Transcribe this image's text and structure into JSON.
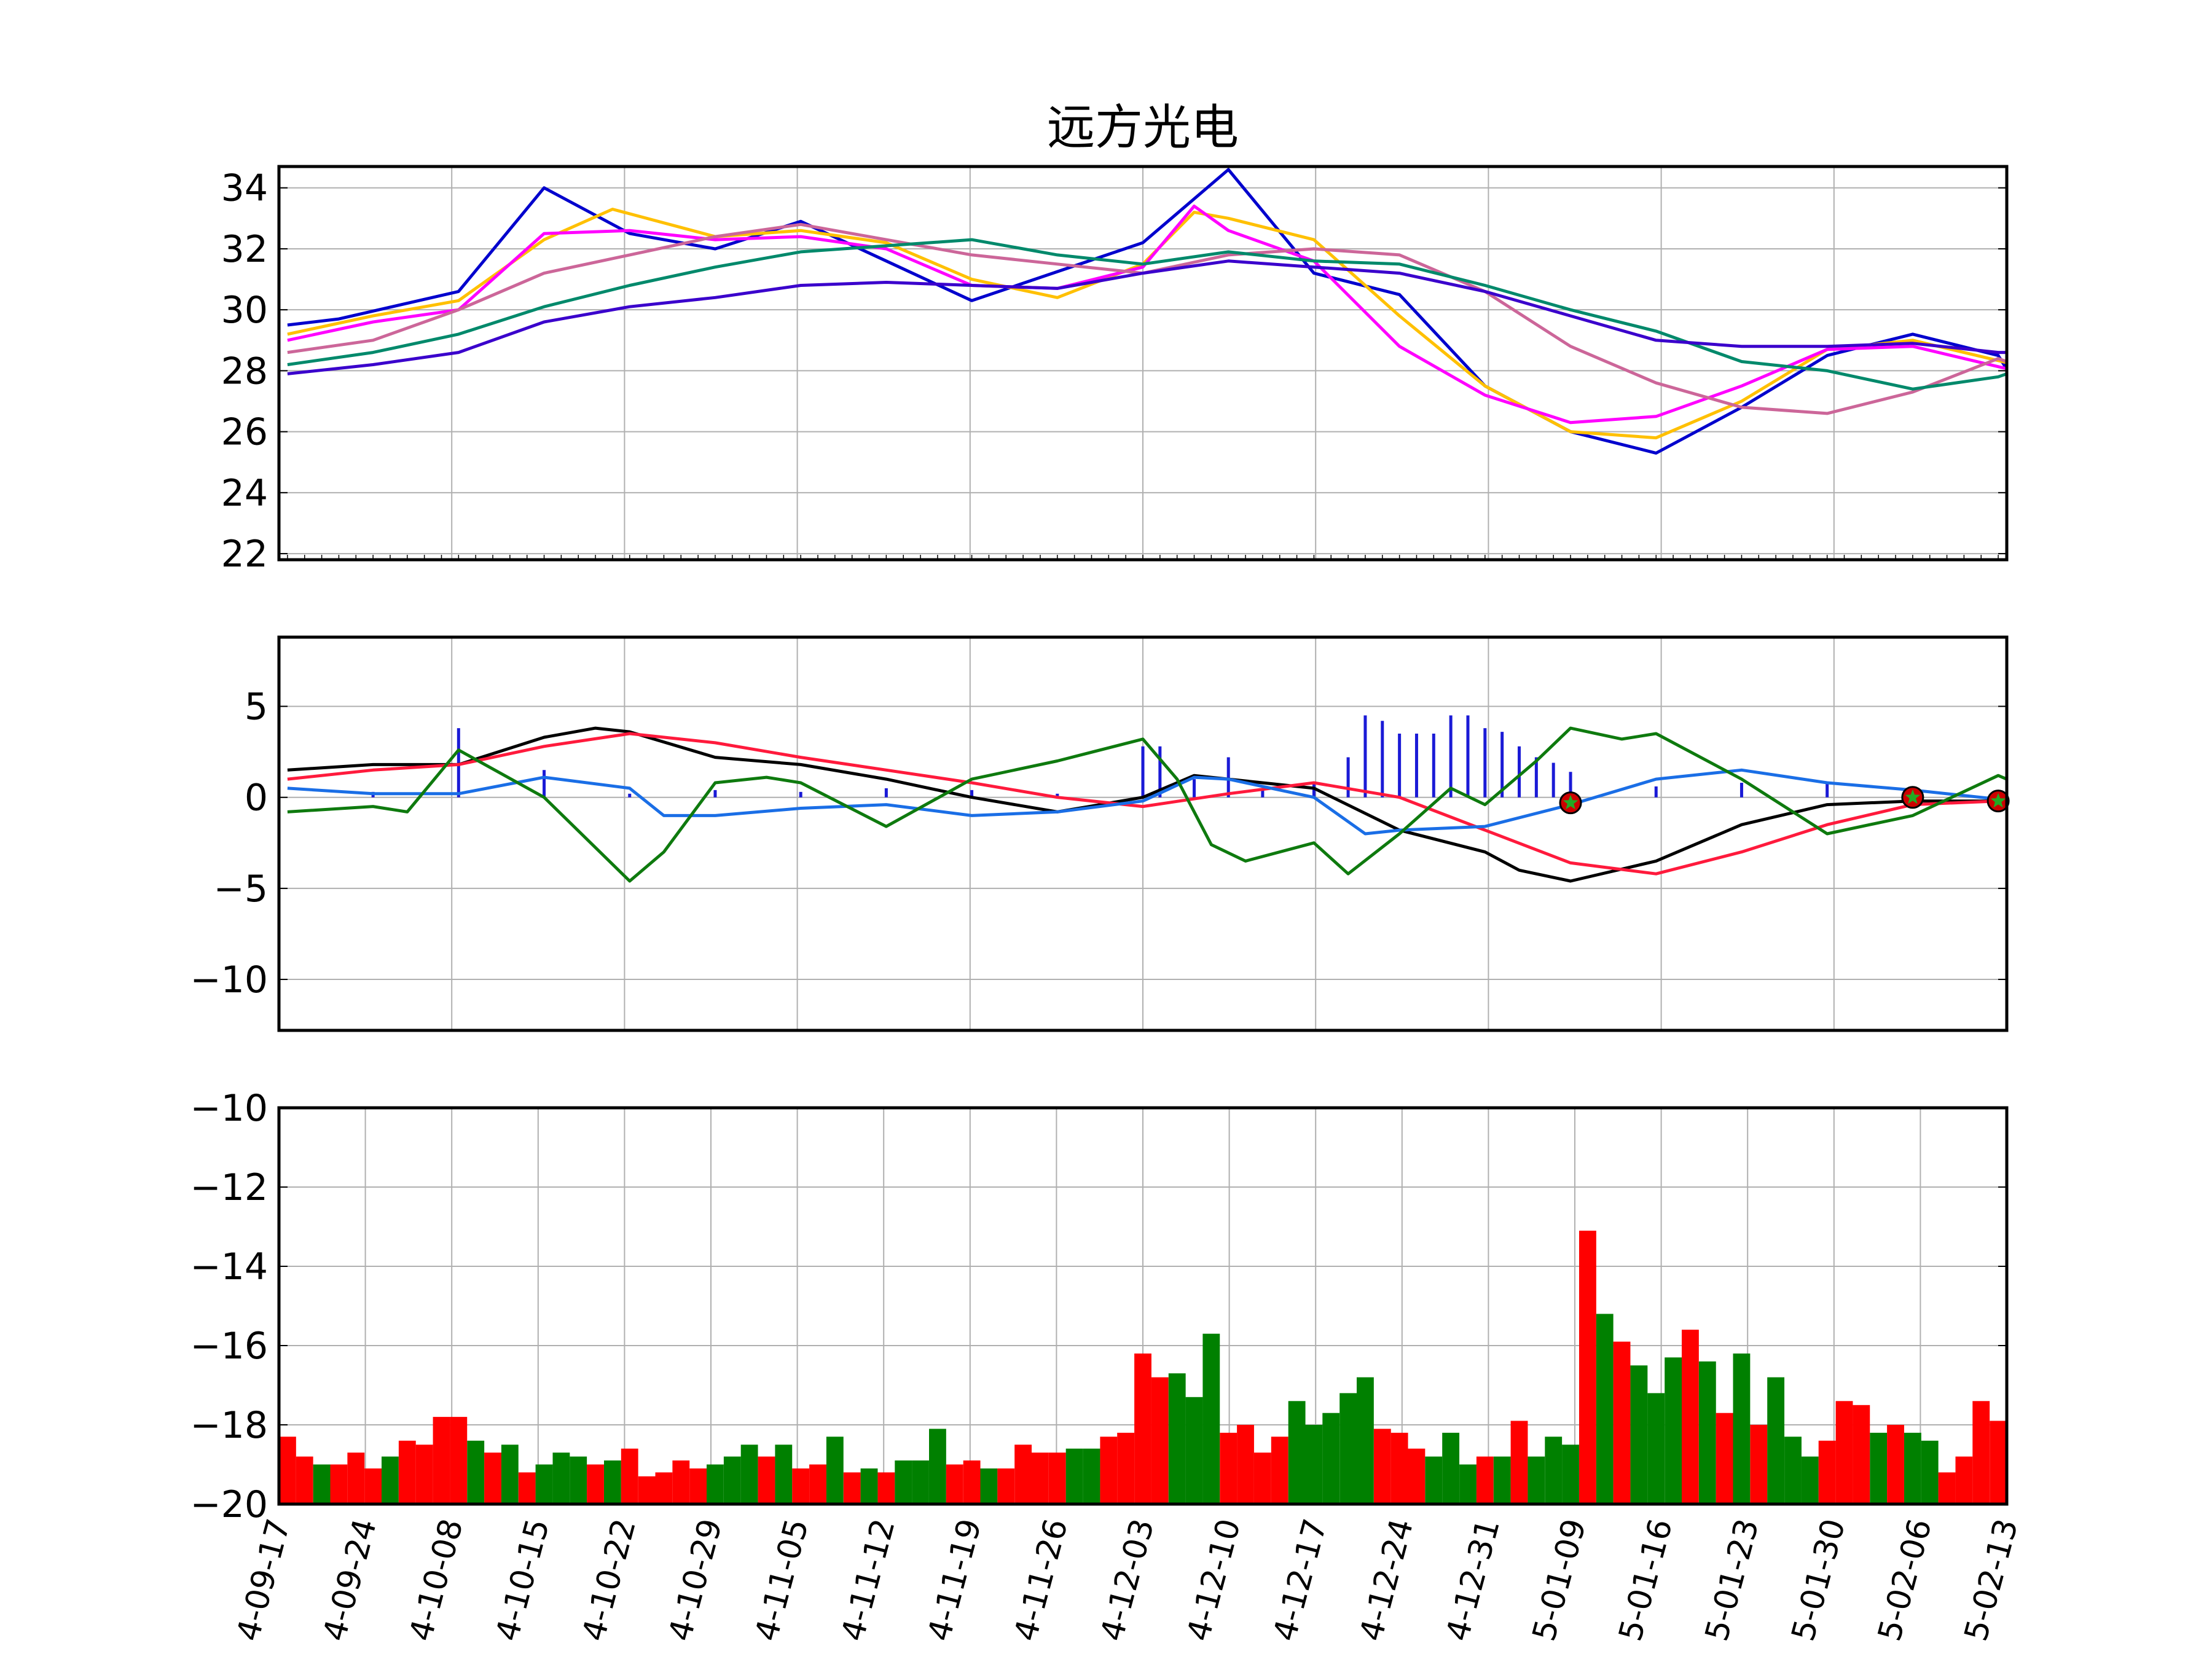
{
  "chart_data": [
    {
      "type": "line",
      "panel": "price",
      "title": "远方光电",
      "ylim": [
        21.8,
        34.7
      ],
      "yticks": [
        22,
        24,
        26,
        28,
        30,
        32,
        34
      ],
      "ytick_labels": [
        "22",
        "24",
        "26",
        "28",
        "30",
        "32",
        "34"
      ],
      "grid": true,
      "x_dates": [
        "4-09-17",
        "4-09-24",
        "4-10-08",
        "4-10-15",
        "4-10-22",
        "4-10-29",
        "4-11-05",
        "4-11-12",
        "4-11-19",
        "4-11-26",
        "4-12-03",
        "4-12-10",
        "4-12-17",
        "4-12-24",
        "4-12-31",
        "5-01-09",
        "5-01-16",
        "5-01-23",
        "5-01-30",
        "5-02-06",
        "5-02-13"
      ],
      "series": [
        {
          "color": "#0000cd",
          "x": [
            0,
            3,
            10,
            15,
            20,
            25,
            30,
            35,
            40,
            50,
            55,
            60,
            65,
            70,
            75,
            80,
            85,
            90,
            95,
            100,
            101
          ],
          "values": [
            29.5,
            29.7,
            30.6,
            34.0,
            32.5,
            32.0,
            32.9,
            31.6,
            30.3,
            32.2,
            34.6,
            31.2,
            30.5,
            27.5,
            26.0,
            25.3,
            26.8,
            28.5,
            29.2,
            28.5,
            27.6
          ]
        },
        {
          "color": "#ffc000",
          "x": [
            0,
            5,
            10,
            15,
            19,
            25,
            30,
            35,
            40,
            45,
            50,
            53,
            55,
            60,
            65,
            70,
            75,
            80,
            85,
            90,
            95,
            101
          ],
          "values": [
            29.2,
            29.8,
            30.3,
            32.3,
            33.3,
            32.4,
            32.6,
            32.2,
            31.0,
            30.4,
            31.5,
            33.2,
            33.0,
            32.3,
            29.8,
            27.5,
            26.0,
            25.8,
            27.0,
            28.7,
            29.0,
            28.2
          ]
        },
        {
          "color": "#ff00ff",
          "x": [
            0,
            5,
            10,
            15,
            20,
            25,
            30,
            35,
            40,
            45,
            50,
            53,
            55,
            60,
            65,
            70,
            75,
            80,
            85,
            90,
            95,
            101
          ],
          "values": [
            29.0,
            29.6,
            30.0,
            32.5,
            32.6,
            32.3,
            32.4,
            32.0,
            30.8,
            30.7,
            31.4,
            33.4,
            32.6,
            31.6,
            28.8,
            27.2,
            26.3,
            26.5,
            27.5,
            28.7,
            28.8,
            28.0
          ]
        },
        {
          "color": "#cc6699",
          "x": [
            0,
            5,
            10,
            15,
            20,
            25,
            30,
            35,
            40,
            45,
            50,
            55,
            60,
            65,
            70,
            75,
            80,
            85,
            90,
            95,
            100,
            101
          ],
          "values": [
            28.6,
            29.0,
            30.0,
            31.2,
            31.8,
            32.4,
            32.8,
            32.3,
            31.8,
            31.5,
            31.2,
            31.8,
            32.0,
            31.8,
            30.6,
            28.8,
            27.6,
            26.8,
            26.6,
            27.3,
            28.4,
            28.2
          ]
        },
        {
          "color": "#00896b",
          "x": [
            0,
            5,
            10,
            15,
            20,
            25,
            30,
            35,
            40,
            45,
            50,
            55,
            60,
            65,
            70,
            75,
            80,
            85,
            90,
            95,
            100,
            101
          ],
          "values": [
            28.2,
            28.6,
            29.2,
            30.1,
            30.8,
            31.4,
            31.9,
            32.1,
            32.3,
            31.8,
            31.5,
            31.9,
            31.6,
            31.5,
            30.8,
            30.0,
            29.3,
            28.3,
            28.0,
            27.4,
            27.8,
            28.0
          ]
        },
        {
          "color": "#3a00cc",
          "x": [
            0,
            5,
            10,
            15,
            20,
            25,
            30,
            35,
            40,
            45,
            50,
            55,
            60,
            65,
            70,
            75,
            80,
            85,
            90,
            95,
            100,
            101
          ],
          "values": [
            27.9,
            28.2,
            28.6,
            29.6,
            30.1,
            30.4,
            30.8,
            30.9,
            30.8,
            30.7,
            31.2,
            31.6,
            31.4,
            31.2,
            30.6,
            29.8,
            29.0,
            28.8,
            28.8,
            28.9,
            28.6,
            28.6
          ]
        }
      ]
    },
    {
      "type": "line",
      "panel": "macd",
      "ylim": [
        -12.8,
        8.8
      ],
      "yticks": [
        -10,
        -5,
        0,
        5
      ],
      "ytick_labels": [
        "−10",
        "−5",
        "0",
        "5"
      ],
      "grid": true,
      "series": [
        {
          "color": "#000000",
          "x": [
            0,
            5,
            10,
            15,
            18,
            20,
            25,
            30,
            35,
            40,
            45,
            50,
            53,
            55,
            60,
            65,
            70,
            72,
            75,
            80,
            85,
            90,
            95,
            100,
            101
          ],
          "values": [
            1.5,
            1.8,
            1.8,
            3.3,
            3.8,
            3.6,
            2.2,
            1.8,
            1.0,
            0.0,
            -0.8,
            0.0,
            1.2,
            1.0,
            0.5,
            -1.8,
            -3.0,
            -4.0,
            -4.6,
            -3.5,
            -1.5,
            -0.4,
            -0.2,
            -0.2,
            -0.2
          ]
        },
        {
          "color": "#ff1a3c",
          "x": [
            0,
            5,
            10,
            15,
            20,
            25,
            30,
            35,
            40,
            45,
            50,
            55,
            60,
            65,
            70,
            75,
            80,
            85,
            90,
            95,
            100,
            101
          ],
          "values": [
            1.0,
            1.5,
            1.8,
            2.8,
            3.5,
            3.0,
            2.2,
            1.5,
            0.8,
            0.0,
            -0.5,
            0.2,
            0.8,
            0.0,
            -1.8,
            -3.6,
            -4.2,
            -3.0,
            -1.5,
            -0.4,
            -0.2,
            -0.2
          ]
        },
        {
          "color": "#1a6ee6",
          "x": [
            0,
            5,
            10,
            15,
            20,
            22,
            25,
            30,
            35,
            40,
            45,
            50,
            53,
            55,
            60,
            63,
            65,
            70,
            75,
            80,
            85,
            90,
            95,
            100,
            101
          ],
          "values": [
            0.5,
            0.2,
            0.2,
            1.1,
            0.5,
            -1.0,
            -1.0,
            -0.6,
            -0.4,
            -1.0,
            -0.8,
            -0.2,
            1.1,
            1.0,
            0.0,
            -2.0,
            -1.8,
            -1.6,
            -0.4,
            1.0,
            1.5,
            0.8,
            0.4,
            -0.1,
            -0.2
          ]
        },
        {
          "color": "#0e7a0e",
          "x": [
            0,
            5,
            7,
            10,
            15,
            20,
            22,
            25,
            28,
            30,
            35,
            40,
            45,
            50,
            52,
            54,
            56,
            60,
            62,
            65,
            68,
            70,
            73,
            75,
            78,
            80,
            85,
            90,
            95,
            100,
            101
          ],
          "values": [
            -0.8,
            -0.5,
            -0.8,
            2.6,
            0.0,
            -4.6,
            -3.0,
            0.8,
            1.1,
            0.8,
            -1.6,
            1.0,
            2.0,
            3.2,
            1.0,
            -2.6,
            -3.5,
            -2.5,
            -4.2,
            -2.0,
            0.5,
            -0.4,
            2.0,
            3.8,
            3.2,
            3.5,
            1.0,
            -2.0,
            -1.0,
            1.2,
            0.8
          ]
        }
      ],
      "bars": {
        "color": "#1a1ad6",
        "x": [
          5,
          10,
          15,
          20,
          25,
          30,
          35,
          40,
          45,
          50,
          51,
          53,
          55,
          57,
          60,
          62,
          63,
          64,
          65,
          66,
          67,
          68,
          69,
          70,
          71,
          72,
          73,
          74,
          75,
          80,
          85,
          90,
          95,
          100
        ],
        "values": [
          0.3,
          3.8,
          1.5,
          0.2,
          0.4,
          0.3,
          0.5,
          0.4,
          0.2,
          2.8,
          2.8,
          1.0,
          2.2,
          0.5,
          0.8,
          2.2,
          4.5,
          4.2,
          3.5,
          3.5,
          3.5,
          4.5,
          4.5,
          3.8,
          3.6,
          2.8,
          2.2,
          1.9,
          1.4,
          0.6,
          0.8,
          0.8,
          0.5,
          0.3
        ]
      },
      "markers": {
        "x": [
          75,
          95,
          100
        ],
        "values": [
          -0.3,
          0.0,
          -0.2
        ],
        "fill": "#cc0000",
        "star": "#22aa22"
      }
    },
    {
      "type": "bar",
      "panel": "volume",
      "ylim": [
        -20,
        -10
      ],
      "yticks": [
        -20,
        -18,
        -16,
        -14,
        -12,
        -10
      ],
      "ytick_labels": [
        "−20",
        "−18",
        "−16",
        "−14",
        "−12",
        "−10"
      ],
      "grid": true,
      "x_labels": [
        "4-09-17",
        "4-09-24",
        "4-10-08",
        "4-10-15",
        "4-10-22",
        "4-10-29",
        "4-11-05",
        "4-11-12",
        "4-11-19",
        "4-11-26",
        "4-12-03",
        "4-12-10",
        "4-12-17",
        "4-12-24",
        "4-12-31",
        "5-01-09",
        "5-01-16",
        "5-01-23",
        "5-01-30",
        "5-02-06",
        "5-02-13"
      ],
      "values": [
        -18.3,
        -18.8,
        -19.0,
        -19.0,
        -18.7,
        -19.1,
        -18.8,
        -18.4,
        -18.5,
        -17.8,
        -17.8,
        -18.4,
        -18.7,
        -18.5,
        -19.2,
        -19.0,
        -18.7,
        -18.8,
        -19.0,
        -18.9,
        -18.6,
        -19.3,
        -19.2,
        -18.9,
        -19.1,
        -19.0,
        -18.8,
        -18.5,
        -18.8,
        -18.5,
        -19.1,
        -19.0,
        -18.3,
        -19.2,
        -19.1,
        -19.2,
        -18.9,
        -18.9,
        -18.1,
        -19.0,
        -18.9,
        -19.1,
        -19.1,
        -18.5,
        -18.7,
        -18.7,
        -18.6,
        -18.6,
        -18.3,
        -18.2,
        -16.2,
        -16.8,
        -16.7,
        -17.3,
        -15.7,
        -18.2,
        -18.0,
        -18.7,
        -18.3,
        -17.4,
        -18.0,
        -17.7,
        -17.2,
        -16.8,
        -18.1,
        -18.2,
        -18.6,
        -18.8,
        -18.2,
        -19.0,
        -18.8,
        -18.8,
        -17.9,
        -18.8,
        -18.3,
        -18.5,
        -13.1,
        -15.2,
        -15.9,
        -16.5,
        -17.2,
        -16.3,
        -15.6,
        -16.4,
        -17.7,
        -16.2,
        -18.0,
        -16.8,
        -18.3,
        -18.8,
        -18.4,
        -17.4,
        -17.5,
        -18.2,
        -18.0,
        -18.2,
        -18.4,
        -19.2,
        -18.8,
        -17.4,
        -17.9
      ],
      "colors": [
        "r",
        "r",
        "g",
        "r",
        "r",
        "r",
        "g",
        "r",
        "r",
        "r",
        "r",
        "g",
        "r",
        "g",
        "r",
        "g",
        "g",
        "g",
        "r",
        "g",
        "r",
        "r",
        "r",
        "r",
        "r",
        "g",
        "g",
        "g",
        "r",
        "g",
        "r",
        "r",
        "g",
        "r",
        "g",
        "r",
        "g",
        "g",
        "g",
        "r",
        "r",
        "g",
        "r",
        "r",
        "r",
        "r",
        "g",
        "g",
        "r",
        "r",
        "r",
        "r",
        "g",
        "g",
        "g",
        "r",
        "r",
        "r",
        "r",
        "g",
        "g",
        "g",
        "g",
        "g",
        "r",
        "r",
        "r",
        "g",
        "g",
        "g",
        "r",
        "g",
        "r",
        "g",
        "g",
        "g",
        "r",
        "g",
        "r",
        "g",
        "g",
        "g",
        "r",
        "g",
        "r",
        "g",
        "r",
        "g",
        "g",
        "g",
        "r",
        "r",
        "r",
        "g",
        "r",
        "g",
        "g",
        "r",
        "r",
        "r",
        "r"
      ],
      "red": "#ff0000",
      "green": "#008000"
    }
  ]
}
